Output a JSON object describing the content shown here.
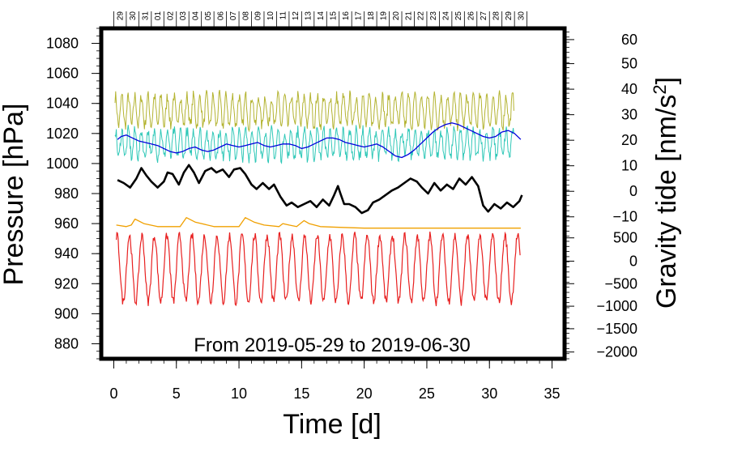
{
  "chart_data": {
    "type": "line",
    "annotation": "From 2019-05-29 to 2019-06-30",
    "xlabel": "Time [d]",
    "ylabel_left": "Pressure [hPa]",
    "ylabel_right_prefix": "Gravity tide [nm/s",
    "ylabel_right_sup": "2",
    "ylabel_right_suffix": "]",
    "xlim": [
      -1,
      36
    ],
    "ylim_left": [
      870,
      1090
    ],
    "x_ticks": [
      {
        "v": 0,
        "label": "0"
      },
      {
        "v": 5,
        "label": "5"
      },
      {
        "v": 10,
        "label": "10"
      },
      {
        "v": 15,
        "label": "15"
      },
      {
        "v": 20,
        "label": "20"
      },
      {
        "v": 25,
        "label": "25"
      },
      {
        "v": 30,
        "label": "30"
      },
      {
        "v": 35,
        "label": "35"
      }
    ],
    "y_ticks_left": [
      {
        "v": 880,
        "label": "880"
      },
      {
        "v": 900,
        "label": "900"
      },
      {
        "v": 920,
        "label": "920"
      },
      {
        "v": 940,
        "label": "940"
      },
      {
        "v": 960,
        "label": "960"
      },
      {
        "v": 980,
        "label": "980"
      },
      {
        "v": 1000,
        "label": "1000"
      },
      {
        "v": 1020,
        "label": "1020"
      },
      {
        "v": 1040,
        "label": "1040"
      },
      {
        "v": 1060,
        "label": "1060"
      },
      {
        "v": 1080,
        "label": "1080"
      }
    ],
    "y_ticks_right_upper": [
      {
        "p": 1082.5,
        "label": "60"
      },
      {
        "p": 1066.5,
        "label": "50"
      },
      {
        "p": 1049.5,
        "label": "40"
      },
      {
        "p": 1032.5,
        "label": "30"
      },
      {
        "p": 1015.5,
        "label": "20"
      },
      {
        "p": 998.5,
        "label": "10"
      },
      {
        "p": 981.5,
        "label": "0"
      },
      {
        "p": 964.5,
        "label": "−10"
      }
    ],
    "y_ticks_right_lower": [
      {
        "p": 950.5,
        "label": "500"
      },
      {
        "p": 935.0,
        "label": "0"
      },
      {
        "p": 920.0,
        "label": "−500"
      },
      {
        "p": 905.0,
        "label": "−1000"
      },
      {
        "p": 890.0,
        "label": "−1500"
      },
      {
        "p": 874.5,
        "label": "−2000"
      }
    ],
    "day_labels": [
      "29",
      "30",
      "31",
      "01",
      "02",
      "03",
      "04",
      "05",
      "06",
      "07",
      "08",
      "09",
      "10",
      "11",
      "12",
      "13",
      "14",
      "15",
      "16",
      "17",
      "18",
      "19",
      "20",
      "21",
      "22",
      "23",
      "24",
      "25",
      "26",
      "27",
      "28",
      "29",
      "30"
    ],
    "day_label_start": 0.5,
    "series": [
      {
        "name": "pressure",
        "color": "#000000",
        "width": 2.6,
        "x": [
          0.3,
          0.8,
          1.3,
          1.8,
          2.2,
          2.6,
          3.0,
          3.5,
          4.0,
          4.3,
          4.7,
          5.2,
          5.6,
          6.0,
          6.4,
          6.8,
          7.3,
          7.8,
          8.2,
          8.7,
          9.2,
          9.6,
          10.1,
          10.5,
          11.0,
          11.4,
          11.9,
          12.4,
          12.8,
          13.3,
          13.8,
          14.2,
          14.7,
          15.2,
          15.7,
          16.2,
          16.7,
          17.2,
          17.6,
          17.9,
          18.1,
          18.4,
          18.8,
          19.3,
          19.8,
          20.3,
          20.7,
          21.2,
          21.7,
          22.2,
          22.7,
          23.2,
          23.7,
          24.2,
          24.6,
          25.1,
          25.6,
          26.1,
          26.6,
          27.1,
          27.6,
          28.1,
          28.6,
          29.1,
          29.5,
          29.9,
          30.4,
          30.9,
          31.4,
          31.9,
          32.4,
          32.6
        ],
        "y": [
          989,
          987,
          984,
          990,
          997,
          992,
          988,
          984,
          988,
          994,
          993,
          986,
          994,
          999,
          994,
          987,
          995,
          997,
          994,
          996,
          991,
          996,
          997,
          993,
          986,
          983,
          987,
          983,
          986,
          978,
          972,
          974,
          971,
          973,
          975,
          971,
          976,
          972,
          979,
          985,
          980,
          973,
          973,
          971,
          967,
          969,
          974,
          976,
          979,
          982,
          984,
          987,
          990,
          988,
          984,
          980,
          987,
          982,
          986,
          983,
          990,
          986,
          991,
          985,
          972,
          968,
          973,
          970,
          974,
          971,
          975,
          979
        ]
      },
      {
        "name": "orange",
        "color": "#f0a000",
        "width": 1.3,
        "x": [
          0.2,
          1.0,
          1.4,
          1.7,
          2.4,
          3.5,
          5.3,
          5.8,
          6.5,
          8.0,
          10.0,
          10.5,
          11.2,
          12.0,
          13.2,
          13.5,
          14.0,
          14.6,
          15.2,
          15.6,
          16.5,
          18.0,
          20.0,
          22.0,
          24.0,
          26.0,
          28.0,
          30.0,
          32.5
        ],
        "y": [
          959,
          958,
          959,
          963,
          960,
          958,
          958,
          964,
          961,
          958,
          958,
          964,
          961,
          959,
          958,
          960,
          959,
          958,
          962,
          960,
          958,
          957.5,
          957,
          957,
          957,
          957,
          957,
          957,
          957
        ]
      },
      {
        "name": "blue",
        "color": "#0000dd",
        "width": 1.3,
        "x": [
          0.3,
          0.6,
          1.0,
          1.5,
          2.0,
          2.5,
          3.0,
          3.5,
          4.0,
          4.5,
          5.0,
          5.5,
          6.0,
          6.5,
          7.0,
          7.5,
          8.0,
          8.5,
          9.0,
          9.5,
          10.0,
          10.5,
          11.0,
          11.5,
          12.0,
          12.5,
          13.0,
          13.5,
          14.0,
          14.5,
          15.0,
          15.5,
          16.0,
          16.5,
          17.0,
          17.5,
          18.0,
          18.5,
          19.0,
          19.5,
          20.0,
          20.5,
          21.0,
          21.5,
          22.0,
          22.5,
          23.0,
          23.5,
          24.0,
          24.5,
          25.0,
          25.5,
          26.0,
          26.5,
          27.0,
          27.5,
          28.0,
          28.5,
          29.0,
          29.5,
          30.0,
          30.5,
          31.0,
          31.5,
          32.0,
          32.5
        ],
        "y": [
          1016,
          1018,
          1019,
          1017,
          1015,
          1014,
          1013,
          1012,
          1010,
          1008,
          1007,
          1008,
          1010,
          1011,
          1009,
          1008,
          1009,
          1011,
          1013,
          1012,
          1011,
          1012,
          1013,
          1014,
          1012,
          1011,
          1012,
          1013,
          1013,
          1012,
          1010,
          1011,
          1013,
          1015,
          1017,
          1017,
          1016,
          1014,
          1013,
          1012,
          1011,
          1012,
          1013,
          1011,
          1008,
          1005,
          1004,
          1006,
          1009,
          1013,
          1017,
          1021,
          1024,
          1026,
          1027,
          1026,
          1024,
          1022,
          1020,
          1018,
          1017,
          1018,
          1021,
          1022,
          1020,
          1016
        ]
      }
    ],
    "oscillators": [
      {
        "name": "olive",
        "color": "#b3b330",
        "base": 1035,
        "amp": 10,
        "period": 0.52,
        "noise": 4,
        "start": 0.1,
        "end": 32.0,
        "width": 1.0
      },
      {
        "name": "cyan",
        "color": "#30c8b8",
        "base": 1013,
        "amp": 9,
        "period": 0.52,
        "noise": 4,
        "start": 0.1,
        "end": 32.0,
        "width": 1.0
      },
      {
        "name": "red",
        "color": "#e82020",
        "base": 930,
        "amp": 22,
        "period": 1.0,
        "noise": 3,
        "start": 0.2,
        "end": 32.5,
        "width": 1.2
      }
    ]
  }
}
